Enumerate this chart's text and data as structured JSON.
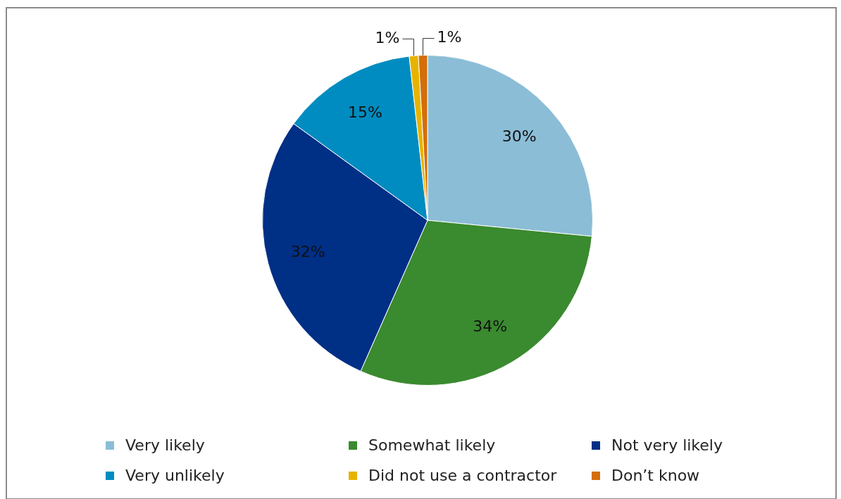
{
  "chart_data": {
    "type": "pie",
    "categories": [
      "Very likely",
      "Somewhat likely",
      "Not very likely",
      "Very unlikely",
      "Did not use a contractor",
      "Don’t know"
    ],
    "values": [
      30,
      34,
      32,
      15,
      1,
      1
    ],
    "colors": [
      "#8bbdd6",
      "#3a8a2f",
      "#002f86",
      "#008cc0",
      "#e8b300",
      "#d46e0a"
    ],
    "value_labels": [
      "30%",
      "34%",
      "32%",
      "15%",
      "1%",
      "1%"
    ],
    "legend": "bottom"
  }
}
